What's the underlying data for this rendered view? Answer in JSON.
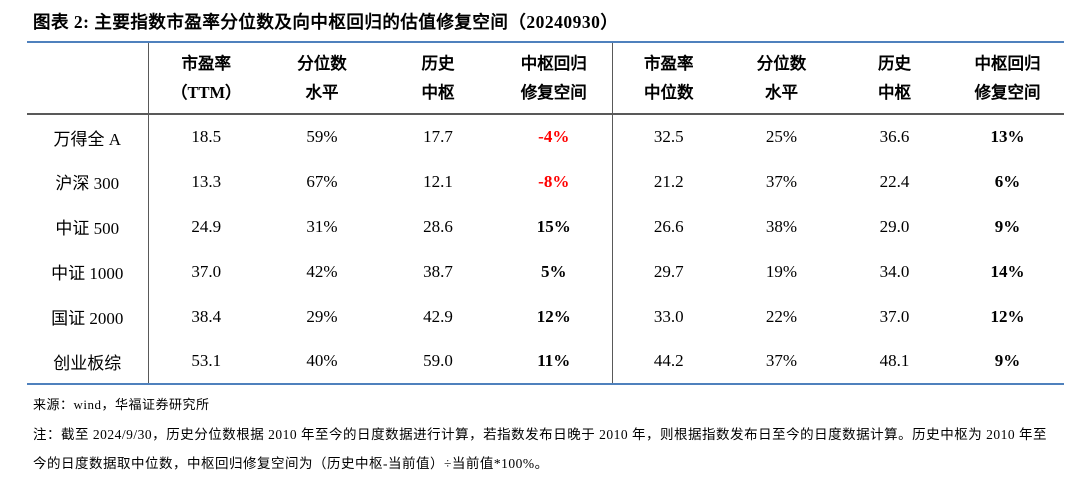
{
  "title": "图表 2:  主要指数市盈率分位数及向中枢回归的估值修复空间（20240930）",
  "colors": {
    "accent_border": "#4f81bd",
    "divider": "#595959",
    "negative": "#ff0000",
    "text": "#000000"
  },
  "table": {
    "corner": "",
    "columns": [
      {
        "line1": "市盈率",
        "line2": "（TTM）"
      },
      {
        "line1": "分位数",
        "line2": "水平"
      },
      {
        "line1": "历史",
        "line2": "中枢"
      },
      {
        "line1": "中枢回归",
        "line2": "修复空间"
      },
      {
        "line1": "市盈率",
        "line2": "中位数"
      },
      {
        "line1": "分位数",
        "line2": "水平"
      },
      {
        "line1": "历史",
        "line2": "中枢"
      },
      {
        "line1": "中枢回归",
        "line2": "修复空间"
      }
    ],
    "rows": [
      {
        "label": "万得全 A",
        "values": [
          "18.5",
          "59%",
          "17.7",
          "-4%",
          "32.5",
          "25%",
          "36.6",
          "13%"
        ]
      },
      {
        "label": "沪深 300",
        "values": [
          "13.3",
          "67%",
          "12.1",
          "-8%",
          "21.2",
          "37%",
          "22.4",
          "6%"
        ]
      },
      {
        "label": "中证 500",
        "values": [
          "24.9",
          "31%",
          "28.6",
          "15%",
          "26.6",
          "38%",
          "29.0",
          "9%"
        ]
      },
      {
        "label": "中证 1000",
        "values": [
          "37.0",
          "42%",
          "38.7",
          "5%",
          "29.7",
          "19%",
          "34.0",
          "14%"
        ]
      },
      {
        "label": "国证 2000",
        "values": [
          "38.4",
          "29%",
          "42.9",
          "12%",
          "33.0",
          "22%",
          "37.0",
          "12%"
        ]
      },
      {
        "label": "创业板综",
        "values": [
          "53.1",
          "40%",
          "59.0",
          "11%",
          "44.2",
          "37%",
          "48.1",
          "9%"
        ]
      }
    ]
  },
  "footer": {
    "source": "来源：wind，华福证券研究所",
    "note": "注：截至 2024/9/30，历史分位数根据 2010 年至今的日度数据进行计算，若指数发布日晚于 2010 年，则根据指数发布日至今的日度数据计算。历史中枢为 2010 年至今的日度数据取中位数，中枢回归修复空间为（历史中枢-当前值）÷当前值*100%。"
  }
}
